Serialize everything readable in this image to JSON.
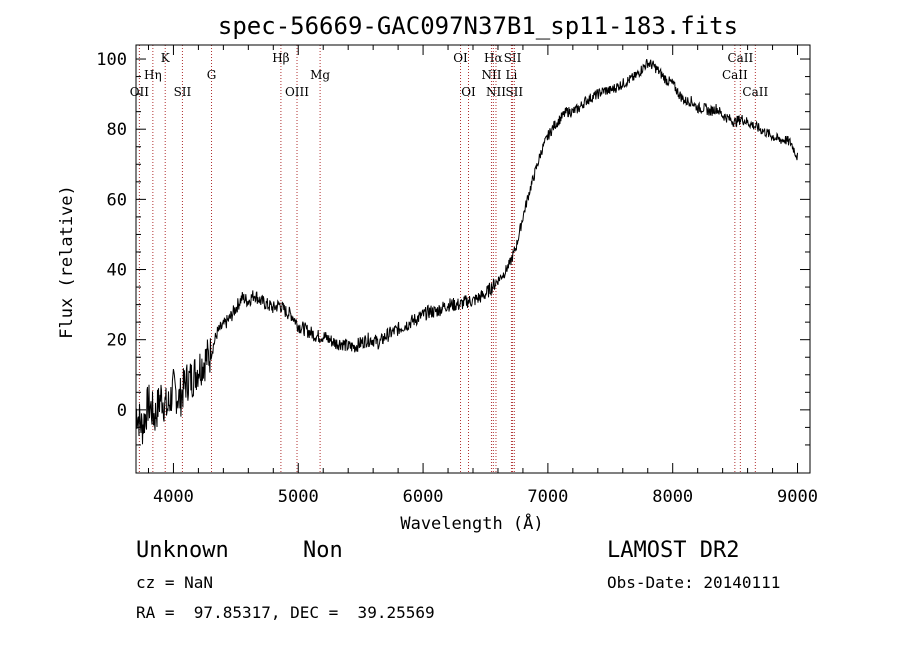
{
  "chart_data": {
    "type": "line",
    "title": "spec-56669-GAC097N37B1_sp11-183.fits",
    "xlabel": "Wavelength (Å)",
    "ylabel": "Flux (relative)",
    "xlim": [
      3700,
      9100
    ],
    "ylim": [
      -18,
      104
    ],
    "x_ticks": [
      4000,
      5000,
      6000,
      7000,
      8000,
      9000
    ],
    "y_ticks": [
      0,
      20,
      40,
      60,
      80,
      100
    ],
    "grid": false,
    "series": [
      {
        "x": [
          3700,
          3750,
          3800,
          3850,
          3900,
          3950,
          4000,
          4050,
          4100,
          4150,
          4200,
          4250,
          4300,
          4350,
          4400,
          4450,
          4500,
          4550,
          4600,
          4650,
          4700,
          4750,
          4800,
          4850,
          4900,
          4950,
          5000,
          5050,
          5100,
          5150,
          5200,
          5250,
          5300,
          5350,
          5400,
          5450,
          5500,
          5550,
          5600,
          5650,
          5700,
          5750,
          5800,
          5850,
          5900,
          5950,
          6000,
          6050,
          6100,
          6150,
          6200,
          6250,
          6300,
          6350,
          6400,
          6450,
          6500,
          6550,
          6600,
          6650,
          6700,
          6750,
          6800,
          6850,
          6900,
          6950,
          7000,
          7050,
          7100,
          7150,
          7200,
          7250,
          7300,
          7350,
          7400,
          7450,
          7500,
          7550,
          7600,
          7650,
          7700,
          7750,
          7800,
          7850,
          7900,
          7950,
          8000,
          8050,
          8100,
          8150,
          8200,
          8250,
          8300,
          8350,
          8400,
          8450,
          8500,
          8550,
          8600,
          8650,
          8700,
          8750,
          8800,
          8850,
          8900,
          8950,
          9000
        ],
        "y": [
          0,
          -5,
          2,
          -2,
          4,
          0,
          6,
          3,
          8,
          9,
          12,
          14,
          16,
          22,
          24,
          26,
          29,
          32,
          31,
          33,
          31,
          30,
          29,
          30,
          28,
          27,
          24,
          23,
          22,
          21,
          21,
          20,
          19,
          19,
          18,
          18,
          19,
          20,
          20,
          19,
          21,
          22,
          23,
          24,
          25,
          26,
          27,
          28,
          28,
          29,
          30,
          30,
          30,
          31,
          31,
          32,
          33,
          35,
          37,
          39,
          42,
          47,
          55,
          62,
          68,
          74,
          78,
          81,
          83,
          85,
          85,
          86,
          88,
          89,
          90,
          91,
          91,
          92,
          93,
          94,
          95,
          97,
          99,
          98,
          96,
          94,
          93,
          90,
          88,
          88,
          86,
          86,
          85,
          86,
          84,
          83,
          82,
          83,
          82,
          81,
          80,
          79,
          78,
          77,
          77,
          76,
          72
        ]
      }
    ],
    "line_labels": [
      {
        "name": "OII",
        "x": 3727,
        "row": 3
      },
      {
        "name": "Hη",
        "x": 3835,
        "row": 2
      },
      {
        "name": "K",
        "x": 3934,
        "row": 1
      },
      {
        "name": "SII",
        "x": 4072,
        "row": 3
      },
      {
        "name": "G",
        "x": 4305,
        "row": 2
      },
      {
        "name": "Hβ",
        "x": 4861,
        "row": 1
      },
      {
        "name": "OIII",
        "x": 4990,
        "row": 3
      },
      {
        "name": "Mg",
        "x": 5175,
        "row": 2
      },
      {
        "name": "OI",
        "x": 6300,
        "row": 1
      },
      {
        "name": "OI",
        "x": 6364,
        "row": 3
      },
      {
        "name": "Hα",
        "x": 6563,
        "row": 1
      },
      {
        "name": "NII",
        "x": 6548,
        "row": 2
      },
      {
        "name": "NII",
        "x": 6584,
        "row": 3
      },
      {
        "name": "SII",
        "x": 6717,
        "row": 1
      },
      {
        "name": "Li",
        "x": 6708,
        "row": 2
      },
      {
        "name": "SII",
        "x": 6731,
        "row": 3
      },
      {
        "name": "CaII",
        "x": 8542,
        "row": 1
      },
      {
        "name": "CaII",
        "x": 8498,
        "row": 2
      },
      {
        "name": "CaII",
        "x": 8662,
        "row": 3
      }
    ]
  },
  "info": {
    "class_label": "Unknown",
    "subclass_label": "Non",
    "survey": "LAMOST DR2",
    "cz": "cz = NaN",
    "obs_date": "Obs-Date: 20140111",
    "coords": "RA =  97.85317, DEC =  39.25569"
  }
}
